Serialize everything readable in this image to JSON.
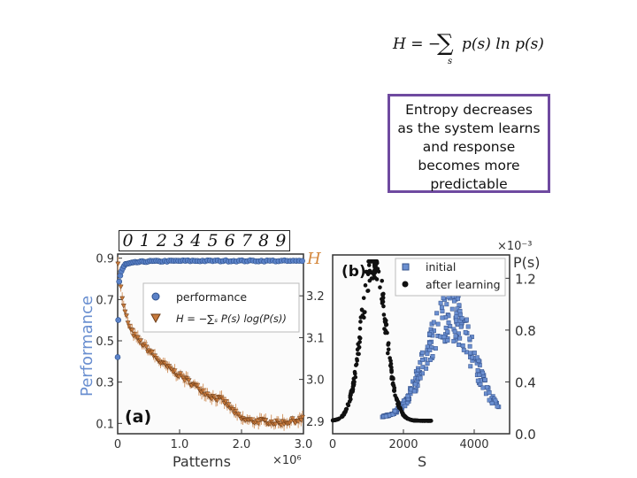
{
  "formula": {
    "lhs": "H = −",
    "sum": "∑",
    "sub": "s",
    "rhs": "p(s) ln p(s)"
  },
  "callout": {
    "lines": [
      "Entropy decreases",
      "as the system learns",
      "and response",
      "becomes more",
      "predictable"
    ]
  },
  "digits": [
    "0",
    "1",
    "2",
    "3",
    "4",
    "5",
    "6",
    "7",
    "8",
    "9"
  ],
  "chart_data": [
    {
      "type": "line",
      "panel_label": "(a)",
      "xlabel": "Patterns",
      "x_multiplier": "×10⁶",
      "ylabel": "Performance",
      "y2label": "H",
      "x_ticks": [
        "0",
        "1.0",
        "2.0",
        "3.0"
      ],
      "y_ticks": [
        "0.1",
        "0.3",
        "0.5",
        "0.7",
        "0.9"
      ],
      "y2_ticks": [
        "2.9",
        "3.0",
        "3.1",
        "3.2"
      ],
      "xlim": [
        0,
        3.0
      ],
      "ylim": [
        0.05,
        0.92
      ],
      "y2lim": [
        2.87,
        3.3
      ],
      "legend_position": "upper-middle",
      "series": [
        {
          "name": "performance",
          "color": "#5b82c8",
          "axis": "left",
          "x": [
            0.0,
            0.02,
            0.05,
            0.08,
            0.12,
            0.2,
            0.3,
            0.5,
            0.7,
            1.0,
            1.5,
            2.0,
            2.5,
            2.8,
            3.0
          ],
          "y": [
            0.42,
            0.78,
            0.83,
            0.85,
            0.87,
            0.875,
            0.88,
            0.885,
            0.885,
            0.887,
            0.887,
            0.887,
            0.887,
            0.886,
            0.886
          ]
        },
        {
          "name": "H = −∑ₛ P(s) log(P(s))",
          "color": "#c87a3c",
          "axis": "right",
          "x": [
            0.0,
            0.05,
            0.1,
            0.2,
            0.3,
            0.5,
            0.7,
            0.9,
            1.1,
            1.3,
            1.5,
            1.7,
            1.9,
            2.0,
            2.2,
            2.4,
            2.6,
            2.8,
            3.0
          ],
          "y": [
            3.29,
            3.22,
            3.17,
            3.12,
            3.1,
            3.07,
            3.04,
            3.02,
            3.0,
            2.98,
            2.96,
            2.95,
            2.92,
            2.905,
            2.9,
            2.9,
            2.895,
            2.9,
            2.905
          ]
        }
      ]
    },
    {
      "type": "scatter",
      "panel_label": "(b)",
      "xlabel": "S",
      "ylabel": "P(s)",
      "y_multiplier": "×10⁻³",
      "x_ticks": [
        "0",
        "2000",
        "4000"
      ],
      "y_ticks": [
        "0.0",
        "0.4",
        "0.8",
        "1.2"
      ],
      "xlim": [
        0,
        5000
      ],
      "ylim": [
        0.0,
        1.38
      ],
      "legend_position": "top-right",
      "series": [
        {
          "name": "initial",
          "marker": "square",
          "color": "#6b8fd0",
          "peak_x": 3300,
          "peak_y": 0.86,
          "spread": 650,
          "x_range": [
            1400,
            4700
          ]
        },
        {
          "name": "after learning",
          "marker": "circle",
          "color": "#111111",
          "peak_x": 1150,
          "peak_y": 1.33,
          "spread": 330,
          "x_range": [
            0,
            2800
          ]
        }
      ]
    }
  ]
}
